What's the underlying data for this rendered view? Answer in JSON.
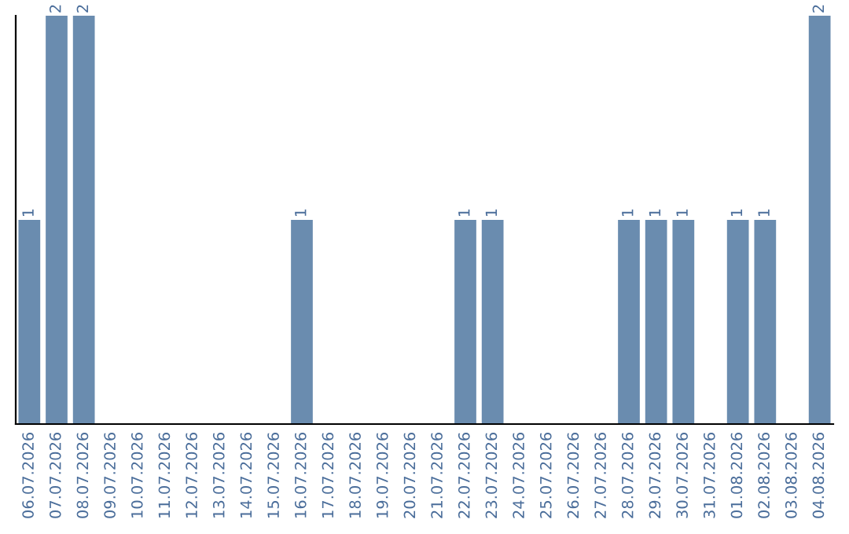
{
  "chart_data": {
    "type": "bar",
    "categories": [
      "06.07.2026",
      "07.07.2026",
      "08.07.2026",
      "09.07.2026",
      "10.07.2026",
      "11.07.2026",
      "12.07.2026",
      "13.07.2026",
      "14.07.2026",
      "15.07.2026",
      "16.07.2026",
      "17.07.2026",
      "18.07.2026",
      "19.07.2026",
      "20.07.2026",
      "21.07.2026",
      "22.07.2026",
      "23.07.2026",
      "24.07.2026",
      "25.07.2026",
      "26.07.2026",
      "27.07.2026",
      "28.07.2026",
      "29.07.2026",
      "30.07.2026",
      "31.07.2026",
      "01.08.2026",
      "02.08.2026",
      "03.08.2026",
      "04.08.2026"
    ],
    "values": [
      1,
      2,
      2,
      0,
      0,
      0,
      0,
      0,
      0,
      0,
      1,
      0,
      0,
      0,
      0,
      0,
      1,
      1,
      0,
      0,
      0,
      0,
      1,
      1,
      1,
      0,
      1,
      1,
      0,
      2
    ],
    "value_labels": [
      "1",
      "2",
      "2",
      null,
      null,
      null,
      null,
      null,
      null,
      null,
      "1",
      null,
      null,
      null,
      null,
      null,
      "1",
      "1",
      null,
      null,
      null,
      null,
      "1",
      "1",
      "1",
      null,
      "1",
      "1",
      null,
      "2"
    ],
    "color": "#6a8caf",
    "ylim": [
      0,
      2
    ],
    "tick_labels": "x",
    "grid": false,
    "legend": false
  }
}
